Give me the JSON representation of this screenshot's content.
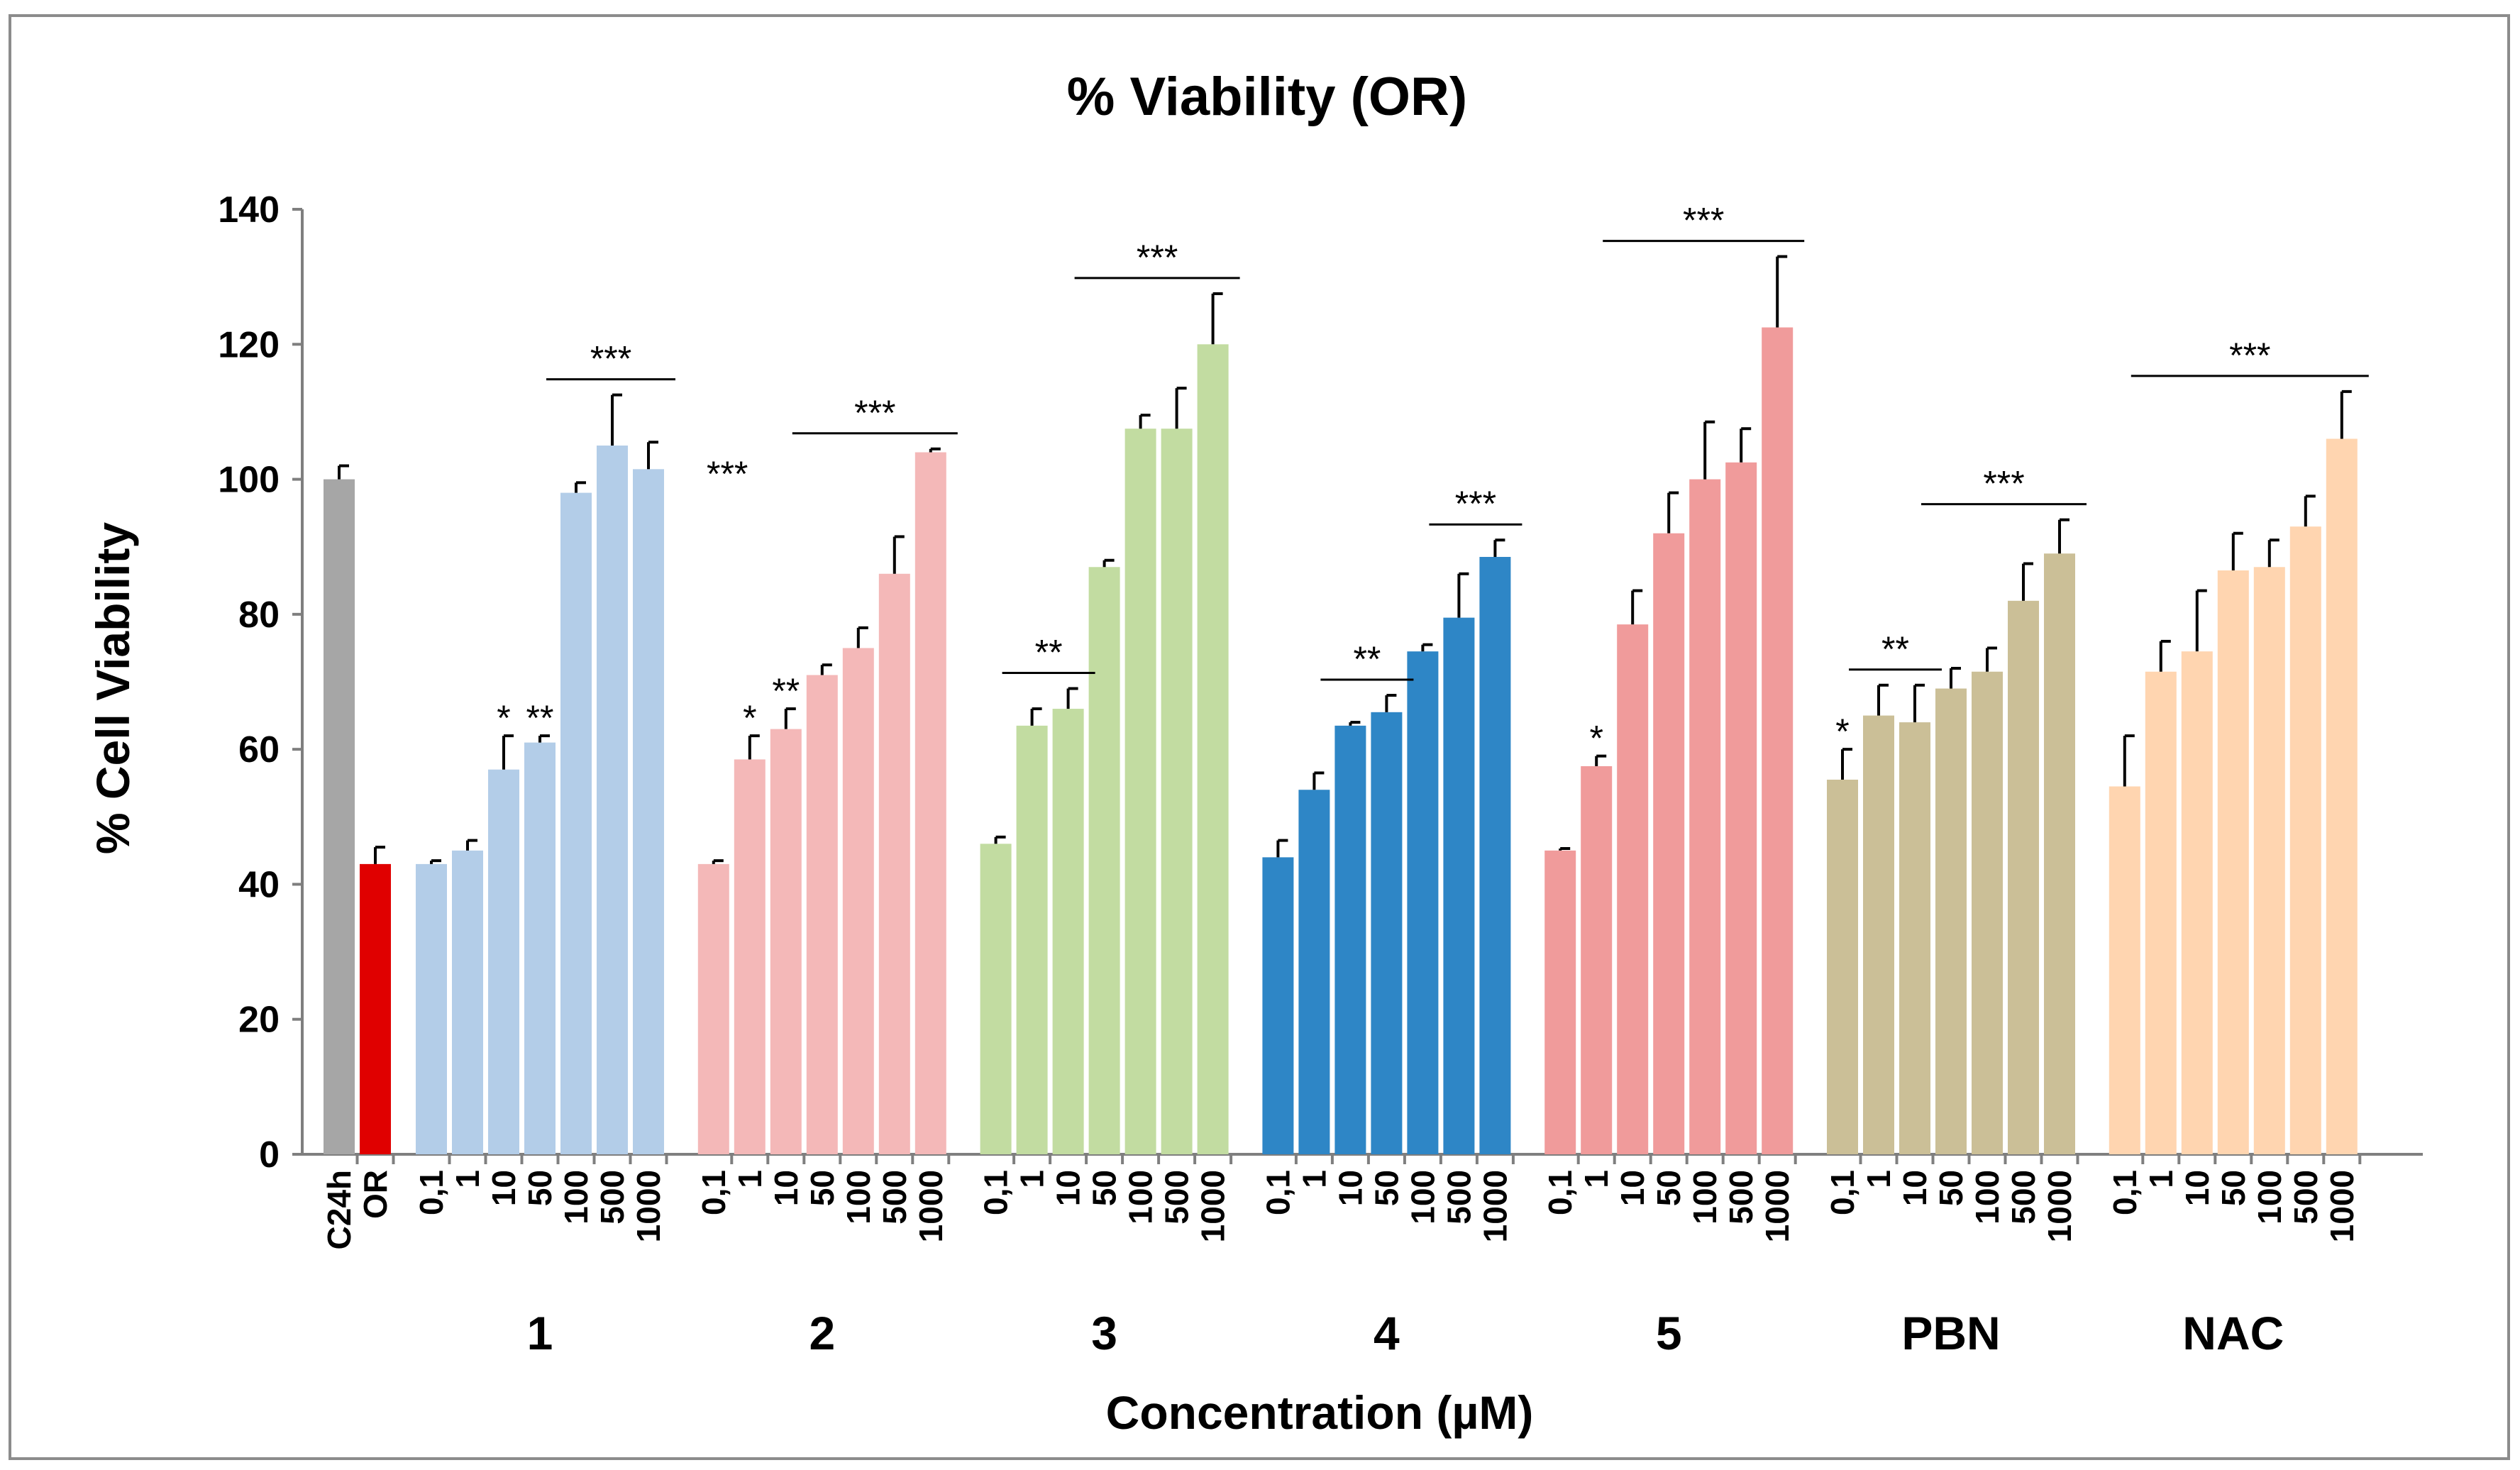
{
  "chart_data": {
    "type": "bar",
    "title": "% Viability (OR)",
    "xlabel": "Concentration (µM)",
    "ylabel": "% Cell Viability",
    "ylim": [
      0,
      140
    ],
    "yticks": [
      0,
      20,
      40,
      60,
      80,
      100,
      120,
      140
    ],
    "grid": false,
    "legend": "none",
    "controls": {
      "categories": [
        "C24h",
        "OR"
      ],
      "values": [
        100,
        43
      ],
      "errors": [
        2,
        2.5
      ],
      "colors": [
        "#a6a6a6",
        "#e00000"
      ]
    },
    "groups": [
      {
        "name": "1",
        "color": "#b3cde8",
        "label_color": "#9dc3e6",
        "categories": [
          "0,1",
          "1",
          "10",
          "50",
          "100",
          "500",
          "1000"
        ],
        "values": [
          43,
          45,
          57,
          61,
          98,
          105,
          101.5
        ],
        "errors": [
          0.5,
          1.5,
          5,
          1,
          1.5,
          7.5,
          4
        ]
      },
      {
        "name": "2",
        "color": "#f4b8b8",
        "label_color": "#f4a0a0",
        "categories": [
          "0,1",
          "1",
          "10",
          "50",
          "100",
          "500",
          "1000"
        ],
        "values": [
          43,
          58.5,
          63,
          71,
          75,
          86,
          104
        ],
        "errors": [
          0.5,
          3.5,
          3,
          1.5,
          3,
          5.5,
          0.5
        ]
      },
      {
        "name": "3",
        "color": "#c2dca1",
        "label_color": "#70a030",
        "categories": [
          "0,1",
          "1",
          "10",
          "50",
          "100",
          "500",
          "1000"
        ],
        "values": [
          46,
          63.5,
          66,
          87,
          107.5,
          107.5,
          120
        ],
        "errors": [
          1,
          2.5,
          3,
          1,
          2,
          6,
          7.5
        ]
      },
      {
        "name": "4",
        "color": "#2e86c6",
        "label_color": "#1f6ea8",
        "categories": [
          "0,1",
          "1",
          "10",
          "50",
          "100",
          "500",
          "1000"
        ],
        "values": [
          44,
          54,
          63.5,
          65.5,
          74.5,
          79.5,
          88.5
        ],
        "errors": [
          2.5,
          2.5,
          0.5,
          2.5,
          1,
          6.5,
          2.5
        ]
      },
      {
        "name": "5",
        "color": "#f09b9b",
        "label_color": "#e05a5a",
        "categories": [
          "0,1",
          "1",
          "10",
          "50",
          "100",
          "500",
          "1000"
        ],
        "values": [
          45,
          57.5,
          78.5,
          92,
          100,
          102.5,
          122.5
        ],
        "errors": [
          0.3,
          1.5,
          5,
          6,
          8.5,
          5,
          10.5
        ]
      },
      {
        "name": "PBN",
        "color": "#cbbf97",
        "label_color": "#a8996b",
        "categories": [
          "0,1",
          "1",
          "10",
          "50",
          "100",
          "500",
          "1000"
        ],
        "values": [
          55.5,
          65,
          64,
          69,
          71.5,
          82,
          89
        ],
        "errors": [
          4.5,
          4.5,
          5.5,
          3,
          3.5,
          5.5,
          5
        ]
      },
      {
        "name": "NAC",
        "color": "#ffd5b0",
        "label_color": "#ff7f24",
        "categories": [
          "0,1",
          "1",
          "10",
          "50",
          "100",
          "500",
          "1000"
        ],
        "values": [
          54.5,
          71.5,
          74.5,
          86.5,
          87,
          93,
          106
        ],
        "errors": [
          7.5,
          4.5,
          9,
          5.5,
          4,
          4.5,
          7
        ]
      }
    ],
    "annotations": [
      {
        "group": 0,
        "bar": 2,
        "text": "*"
      },
      {
        "group": 0,
        "bar": 3,
        "text": "**"
      },
      {
        "group": 0,
        "span": [
          4,
          6
        ],
        "text": "***"
      },
      {
        "group": 0,
        "side_text": "***"
      },
      {
        "group": 1,
        "bar": 1,
        "text": "*"
      },
      {
        "group": 1,
        "bar": 2,
        "text": "**"
      },
      {
        "group": 1,
        "span": [
          3,
          6
        ],
        "text": "***"
      },
      {
        "group": 2,
        "span": [
          1,
          2
        ],
        "text": "**"
      },
      {
        "group": 2,
        "span": [
          3,
          6
        ],
        "text": "***"
      },
      {
        "group": 3,
        "span": [
          2,
          3
        ],
        "text": "**"
      },
      {
        "group": 3,
        "span": [
          5,
          6
        ],
        "text": "***"
      },
      {
        "group": 4,
        "bar": 1,
        "text": "*"
      },
      {
        "group": 4,
        "span": [
          2,
          6
        ],
        "text": "***"
      },
      {
        "group": 5,
        "bar": 0,
        "text": "*"
      },
      {
        "group": 5,
        "span": [
          1,
          2
        ],
        "text": "**"
      },
      {
        "group": 5,
        "span": [
          3,
          6
        ],
        "text": "***"
      },
      {
        "group": 6,
        "span": [
          1,
          6
        ],
        "text": "***"
      }
    ]
  }
}
